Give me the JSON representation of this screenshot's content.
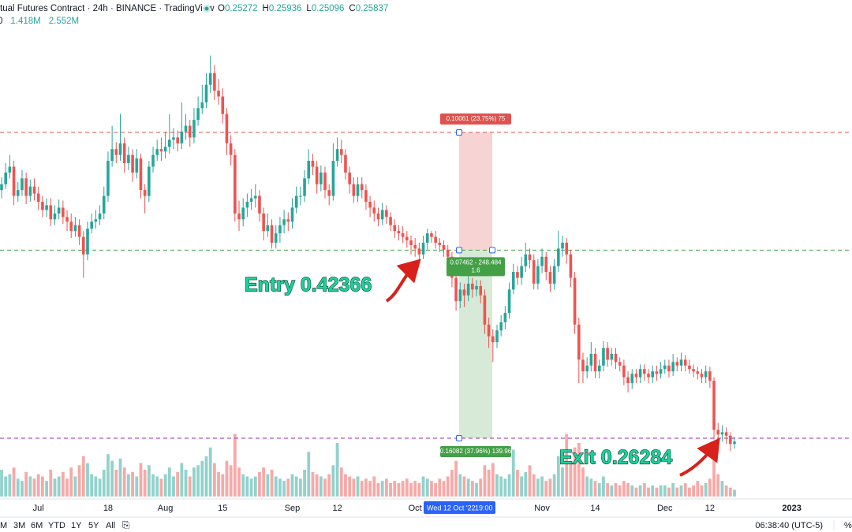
{
  "header": {
    "title": "tual Futures Contract · 24h · BINANCE · TradingView",
    "ohlc": [
      {
        "label": "O",
        "value": 0.25272
      },
      {
        "label": "H",
        "value": 0.25936
      },
      {
        "label": "L",
        "value": 0.25096
      },
      {
        "label": "C",
        "value": 0.25837
      }
    ],
    "volume_row": [
      "0",
      "1.418M",
      "2.552M"
    ]
  },
  "chart_data": {
    "type": "candlestick",
    "categories": [
      null,
      null,
      null,
      null,
      null,
      null,
      null,
      null,
      null,
      "Jul",
      null,
      null,
      null,
      null,
      null,
      null,
      null,
      null,
      null,
      null,
      null,
      null,
      null,
      null,
      null,
      null,
      "18",
      null,
      null,
      null,
      null,
      null,
      null,
      null,
      null,
      null,
      null,
      null,
      null,
      null,
      "Aug",
      null,
      null,
      null,
      null,
      null,
      null,
      null,
      null,
      null,
      null,
      null,
      null,
      null,
      "15",
      null,
      null,
      null,
      null,
      null,
      null,
      null,
      null,
      null,
      null,
      null,
      null,
      null,
      null,
      null,
      null,
      "Sep",
      null,
      null,
      null,
      null,
      null,
      null,
      null,
      null,
      null,
      null,
      "12",
      null,
      null,
      null,
      null,
      null,
      null,
      null,
      null,
      null,
      null,
      null,
      null,
      null,
      null,
      null,
      null,
      null,
      null,
      "Oct",
      null,
      null,
      null,
      null,
      null,
      null,
      null,
      null,
      null,
      null,
      null,
      null,
      null,
      null,
      null,
      null,
      null,
      null,
      null,
      null,
      null,
      null,
      null,
      null,
      null,
      null,
      null,
      null,
      null,
      null,
      "Nov",
      null,
      null,
      null,
      null,
      null,
      null,
      null,
      null,
      null,
      null,
      null,
      null,
      "14",
      null,
      null,
      null,
      null,
      null,
      null,
      null,
      null,
      null,
      null,
      null,
      null,
      null,
      null,
      null,
      null,
      "Dec",
      null,
      null,
      null,
      null,
      null,
      null,
      null,
      null,
      null,
      null,
      "12",
      null,
      null,
      null,
      null,
      null,
      null,
      null,
      null,
      null,
      null,
      null,
      null,
      null,
      null,
      null,
      null,
      null,
      null,
      null,
      "2023"
    ],
    "open": [
      0.475,
      0.48,
      0.49,
      0.495,
      0.47,
      0.475,
      0.485,
      0.47,
      0.478,
      0.472,
      0.465,
      0.458,
      0.462,
      0.45,
      0.455,
      0.46,
      0.452,
      0.448,
      0.44,
      0.445,
      0.435,
      0.42,
      0.442,
      0.448,
      0.45,
      0.455,
      0.47,
      0.5,
      0.51,
      0.505,
      0.515,
      0.498,
      0.505,
      0.49,
      0.502,
      0.475,
      0.47,
      0.495,
      0.505,
      0.51,
      0.508,
      0.512,
      0.518,
      0.52,
      0.515,
      0.525,
      0.53,
      0.52,
      0.535,
      0.545,
      0.55,
      0.565,
      0.575,
      0.56,
      0.555,
      0.54,
      0.515,
      0.505,
      0.455,
      0.45,
      0.46,
      0.465,
      0.468,
      0.47,
      0.455,
      0.44,
      0.445,
      0.43,
      0.438,
      0.445,
      0.45,
      0.448,
      0.46,
      0.47,
      0.47,
      0.485,
      0.5,
      0.495,
      0.48,
      0.49,
      0.475,
      0.47,
      0.5,
      0.51,
      0.505,
      0.49,
      0.48,
      0.47,
      0.48,
      0.475,
      0.465,
      0.46,
      0.455,
      0.45,
      0.458,
      0.452,
      0.445,
      0.44,
      0.438,
      0.435,
      0.432,
      0.428,
      0.425,
      0.42,
      0.43,
      0.438,
      0.435,
      0.43,
      0.428,
      0.424,
      0.418,
      0.4,
      0.38,
      0.39,
      0.385,
      0.395,
      0.39,
      0.393,
      0.385,
      0.36,
      0.35,
      0.345,
      0.355,
      0.362,
      0.37,
      0.39,
      0.405,
      0.4,
      0.41,
      0.42,
      0.415,
      0.395,
      0.41,
      0.418,
      0.405,
      0.395,
      0.41,
      0.425,
      0.43,
      0.42,
      0.4,
      0.36,
      0.33,
      0.32,
      0.325,
      0.335,
      0.32,
      0.325,
      0.34,
      0.33,
      0.335,
      0.328,
      0.325,
      0.315,
      0.31,
      0.318,
      0.315,
      0.322,
      0.318,
      0.315,
      0.32,
      0.318,
      0.322,
      0.325,
      0.32,
      0.328,
      0.325,
      0.33,
      0.325,
      0.322,
      0.32,
      0.318,
      0.315,
      0.32,
      0.312,
      0.27,
      0.266,
      0.268,
      0.265,
      0.258,
      null,
      null,
      null,
      null,
      null,
      null,
      null,
      null,
      null,
      null,
      null,
      null,
      null,
      null
    ],
    "high": [
      0.486,
      0.498,
      0.505,
      0.5,
      0.482,
      0.492,
      0.49,
      0.484,
      0.485,
      0.478,
      0.47,
      0.468,
      0.468,
      0.462,
      0.467,
      0.466,
      0.458,
      0.455,
      0.452,
      0.45,
      0.44,
      0.448,
      0.455,
      0.458,
      0.462,
      0.478,
      0.508,
      0.53,
      0.516,
      0.54,
      0.52,
      0.512,
      0.51,
      0.51,
      0.506,
      0.48,
      0.5,
      0.512,
      0.518,
      0.52,
      0.525,
      0.54,
      0.528,
      0.526,
      0.55,
      0.54,
      0.535,
      0.545,
      0.555,
      0.565,
      0.575,
      0.59,
      0.582,
      0.57,
      0.562,
      0.545,
      0.522,
      0.51,
      0.466,
      0.468,
      0.472,
      0.476,
      0.48,
      0.475,
      0.46,
      0.455,
      0.45,
      0.445,
      0.452,
      0.458,
      0.456,
      0.468,
      0.478,
      0.478,
      0.492,
      0.51,
      0.506,
      0.5,
      0.496,
      0.495,
      0.48,
      0.515,
      0.52,
      0.518,
      0.51,
      0.495,
      0.486,
      0.486,
      0.486,
      0.48,
      0.47,
      0.466,
      0.46,
      0.464,
      0.462,
      0.456,
      0.45,
      0.445,
      0.444,
      0.44,
      0.436,
      0.434,
      0.43,
      0.436,
      0.442,
      0.44,
      0.44,
      0.434,
      0.432,
      0.428,
      0.422,
      0.405,
      0.396,
      0.395,
      0.402,
      0.4,
      0.398,
      0.398,
      0.39,
      0.366,
      0.356,
      0.36,
      0.368,
      0.376,
      0.396,
      0.412,
      0.41,
      0.418,
      0.43,
      0.425,
      0.42,
      0.416,
      0.425,
      0.422,
      0.41,
      0.416,
      0.44,
      0.436,
      0.434,
      0.424,
      0.405,
      0.366,
      0.336,
      0.332,
      0.345,
      0.34,
      0.33,
      0.346,
      0.345,
      0.34,
      0.34,
      0.332,
      0.33,
      0.32,
      0.322,
      0.322,
      0.326,
      0.326,
      0.322,
      0.325,
      0.325,
      0.328,
      0.33,
      0.33,
      0.335,
      0.332,
      0.336,
      0.334,
      0.33,
      0.326,
      0.324,
      0.322,
      0.325,
      0.324,
      0.315,
      0.276,
      0.274,
      0.272,
      0.268,
      0.264,
      null,
      null,
      null,
      null,
      null,
      null,
      null,
      null,
      null,
      null,
      null,
      null,
      null,
      null
    ],
    "low": [
      0.468,
      0.476,
      0.485,
      0.462,
      0.465,
      0.47,
      0.463,
      0.465,
      0.466,
      0.458,
      0.452,
      0.452,
      0.444,
      0.445,
      0.45,
      0.446,
      0.44,
      0.434,
      0.435,
      0.428,
      0.4,
      0.415,
      0.438,
      0.442,
      0.445,
      0.45,
      0.465,
      0.495,
      0.498,
      0.5,
      0.49,
      0.492,
      0.482,
      0.485,
      0.468,
      0.455,
      0.465,
      0.49,
      0.5,
      0.5,
      0.502,
      0.506,
      0.51,
      0.508,
      0.51,
      0.518,
      0.512,
      0.515,
      0.53,
      0.54,
      0.545,
      0.558,
      0.552,
      0.548,
      0.532,
      0.505,
      0.496,
      0.448,
      0.44,
      0.444,
      0.452,
      0.458,
      0.46,
      0.448,
      0.432,
      0.435,
      0.425,
      0.425,
      0.43,
      0.438,
      0.44,
      0.442,
      0.455,
      0.462,
      0.465,
      0.48,
      0.488,
      0.472,
      0.474,
      0.468,
      0.462,
      0.466,
      0.495,
      0.498,
      0.484,
      0.472,
      0.464,
      0.465,
      0.468,
      0.458,
      0.452,
      0.448,
      0.444,
      0.445,
      0.446,
      0.44,
      0.434,
      0.432,
      0.43,
      0.426,
      0.42,
      0.418,
      0.415,
      0.416,
      0.424,
      0.43,
      0.425,
      0.422,
      0.418,
      0.41,
      0.392,
      0.372,
      0.374,
      0.375,
      0.38,
      0.383,
      0.384,
      0.378,
      0.352,
      0.34,
      0.328,
      0.34,
      0.35,
      0.356,
      0.365,
      0.386,
      0.394,
      0.394,
      0.405,
      0.408,
      0.39,
      0.39,
      0.404,
      0.398,
      0.388,
      0.39,
      0.405,
      0.418,
      0.412,
      0.392,
      0.352,
      0.31,
      0.31,
      0.314,
      0.32,
      0.314,
      0.314,
      0.32,
      0.324,
      0.325,
      0.322,
      0.32,
      0.308,
      0.302,
      0.305,
      0.31,
      0.31,
      0.312,
      0.31,
      0.31,
      0.312,
      0.314,
      0.318,
      0.315,
      0.316,
      0.32,
      0.32,
      0.32,
      0.318,
      0.315,
      0.313,
      0.31,
      0.31,
      0.306,
      0.262,
      0.26,
      0.26,
      0.258,
      0.252,
      0.254,
      null,
      null,
      null,
      null,
      null,
      null,
      null,
      null,
      null,
      null,
      null,
      null,
      null,
      null
    ],
    "close": [
      0.48,
      0.49,
      0.495,
      0.47,
      0.475,
      0.485,
      0.47,
      0.478,
      0.472,
      0.465,
      0.458,
      0.462,
      0.45,
      0.455,
      0.46,
      0.452,
      0.448,
      0.44,
      0.445,
      0.435,
      0.42,
      0.442,
      0.448,
      0.45,
      0.455,
      0.47,
      0.5,
      0.51,
      0.505,
      0.515,
      0.498,
      0.505,
      0.49,
      0.502,
      0.475,
      0.47,
      0.495,
      0.505,
      0.51,
      0.508,
      0.512,
      0.518,
      0.52,
      0.515,
      0.525,
      0.53,
      0.52,
      0.535,
      0.545,
      0.55,
      0.565,
      0.575,
      0.56,
      0.555,
      0.54,
      0.515,
      0.505,
      0.455,
      0.45,
      0.46,
      0.465,
      0.468,
      0.47,
      0.455,
      0.44,
      0.445,
      0.43,
      0.438,
      0.445,
      0.45,
      0.448,
      0.46,
      0.47,
      0.47,
      0.485,
      0.5,
      0.495,
      0.48,
      0.49,
      0.475,
      0.47,
      0.5,
      0.51,
      0.505,
      0.49,
      0.48,
      0.47,
      0.48,
      0.475,
      0.465,
      0.46,
      0.455,
      0.45,
      0.458,
      0.452,
      0.445,
      0.44,
      0.438,
      0.435,
      0.432,
      0.428,
      0.425,
      0.42,
      0.43,
      0.438,
      0.435,
      0.43,
      0.428,
      0.424,
      0.418,
      0.4,
      0.38,
      0.39,
      0.385,
      0.395,
      0.39,
      0.393,
      0.385,
      0.36,
      0.35,
      0.345,
      0.355,
      0.362,
      0.37,
      0.39,
      0.405,
      0.4,
      0.41,
      0.42,
      0.415,
      0.395,
      0.41,
      0.418,
      0.405,
      0.395,
      0.41,
      0.425,
      0.43,
      0.42,
      0.4,
      0.36,
      0.33,
      0.32,
      0.325,
      0.335,
      0.32,
      0.325,
      0.34,
      0.33,
      0.335,
      0.328,
      0.325,
      0.315,
      0.31,
      0.318,
      0.315,
      0.322,
      0.318,
      0.315,
      0.32,
      0.318,
      0.322,
      0.325,
      0.32,
      0.328,
      0.325,
      0.33,
      0.325,
      0.322,
      0.32,
      0.318,
      0.315,
      0.32,
      0.312,
      0.27,
      0.266,
      0.268,
      0.265,
      0.258,
      0.26,
      null,
      null,
      null,
      null,
      null,
      null,
      null,
      null,
      null,
      null,
      null,
      null,
      null,
      null
    ],
    "volume": [
      1.2,
      0.9,
      1.0,
      1.3,
      0.8,
      0.7,
      1.1,
      0.9,
      0.8,
      1.0,
      0.9,
      0.7,
      1.2,
      0.8,
      0.9,
      1.1,
      0.8,
      1.3,
      0.9,
      1.4,
      1.8,
      1.5,
      1.0,
      0.9,
      0.8,
      1.2,
      1.9,
      1.6,
      1.2,
      1.7,
      1.3,
      1.0,
      1.1,
      0.9,
      1.5,
      1.2,
      1.4,
      1.0,
      0.9,
      0.8,
      1.0,
      1.3,
      0.9,
      1.1,
      1.5,
      1.2,
      0.9,
      1.3,
      1.4,
      1.6,
      1.8,
      2.2,
      1.5,
      1.1,
      1.0,
      1.6,
      1.4,
      2.8,
      1.3,
      1.0,
      0.9,
      0.8,
      0.9,
      1.1,
      1.3,
      1.0,
      1.2,
      0.9,
      0.8,
      0.7,
      0.8,
      1.0,
      0.9,
      0.8,
      1.2,
      2.0,
      1.1,
      1.0,
      0.9,
      0.8,
      1.0,
      1.4,
      2.4,
      1.3,
      1.0,
      0.9,
      0.8,
      0.9,
      0.7,
      0.8,
      0.7,
      0.9,
      0.6,
      0.7,
      0.8,
      0.6,
      0.7,
      0.6,
      0.7,
      0.8,
      0.6,
      0.7,
      0.6,
      0.9,
      0.8,
      0.7,
      0.6,
      0.8,
      0.7,
      0.9,
      1.2,
      1.6,
      1.0,
      0.9,
      0.8,
      0.7,
      0.6,
      0.8,
      1.4,
      1.2,
      1.5,
      1.0,
      0.9,
      0.8,
      1.0,
      2.1,
      1.2,
      0.9,
      1.1,
      1.4,
      1.0,
      0.8,
      0.9,
      0.7,
      0.8,
      1.0,
      1.8,
      1.3,
      2.8,
      1.6,
      2.2,
      2.4,
      1.3,
      0.9,
      0.8,
      0.7,
      0.6,
      0.9,
      0.6,
      0.5,
      0.6,
      0.5,
      0.7,
      0.6,
      0.5,
      0.4,
      0.5,
      0.6,
      0.4,
      0.5,
      0.4,
      0.5,
      0.5,
      0.4,
      0.6,
      0.4,
      0.5,
      0.6,
      0.4,
      0.5,
      0.7,
      0.5,
      0.6,
      0.8,
      1.7,
      1.0,
      0.7,
      0.5,
      0.4,
      0.3,
      null,
      null,
      null,
      null,
      null,
      null,
      null,
      null,
      null,
      null,
      null,
      null,
      null,
      null
    ],
    "ylim": [
      0.213,
      0.6375
    ],
    "volume_lim": [
      0,
      3
    ],
    "up_color": "#26a69a",
    "down_color": "#ef5350",
    "crosshair_label": "Wed 12 Oct '22",
    "crosshair_time": "19:00",
    "position": {
      "entry": 0.42366,
      "stop": 0.52427,
      "target": 0.26284,
      "stop_color": "#e0524e",
      "entry_color": "#43a047",
      "target_color": "#9c27b0",
      "stop_label": "0.10061 (23.75%) 75",
      "mid_label": "0.07462 - 248.484",
      "mid_label_2": "1.6",
      "target_label": "0.16082 (37.96%) 139.96"
    },
    "annotations": [
      {
        "text": "Entry 0.42366"
      },
      {
        "text": "Exit 0.26284"
      }
    ]
  },
  "toolbar": {
    "ranges": [
      "M",
      "3M",
      "6M",
      "YTD",
      "1Y",
      "5Y",
      "All"
    ],
    "clock": "06:38:40 (UTC-5)",
    "percent": "%"
  }
}
